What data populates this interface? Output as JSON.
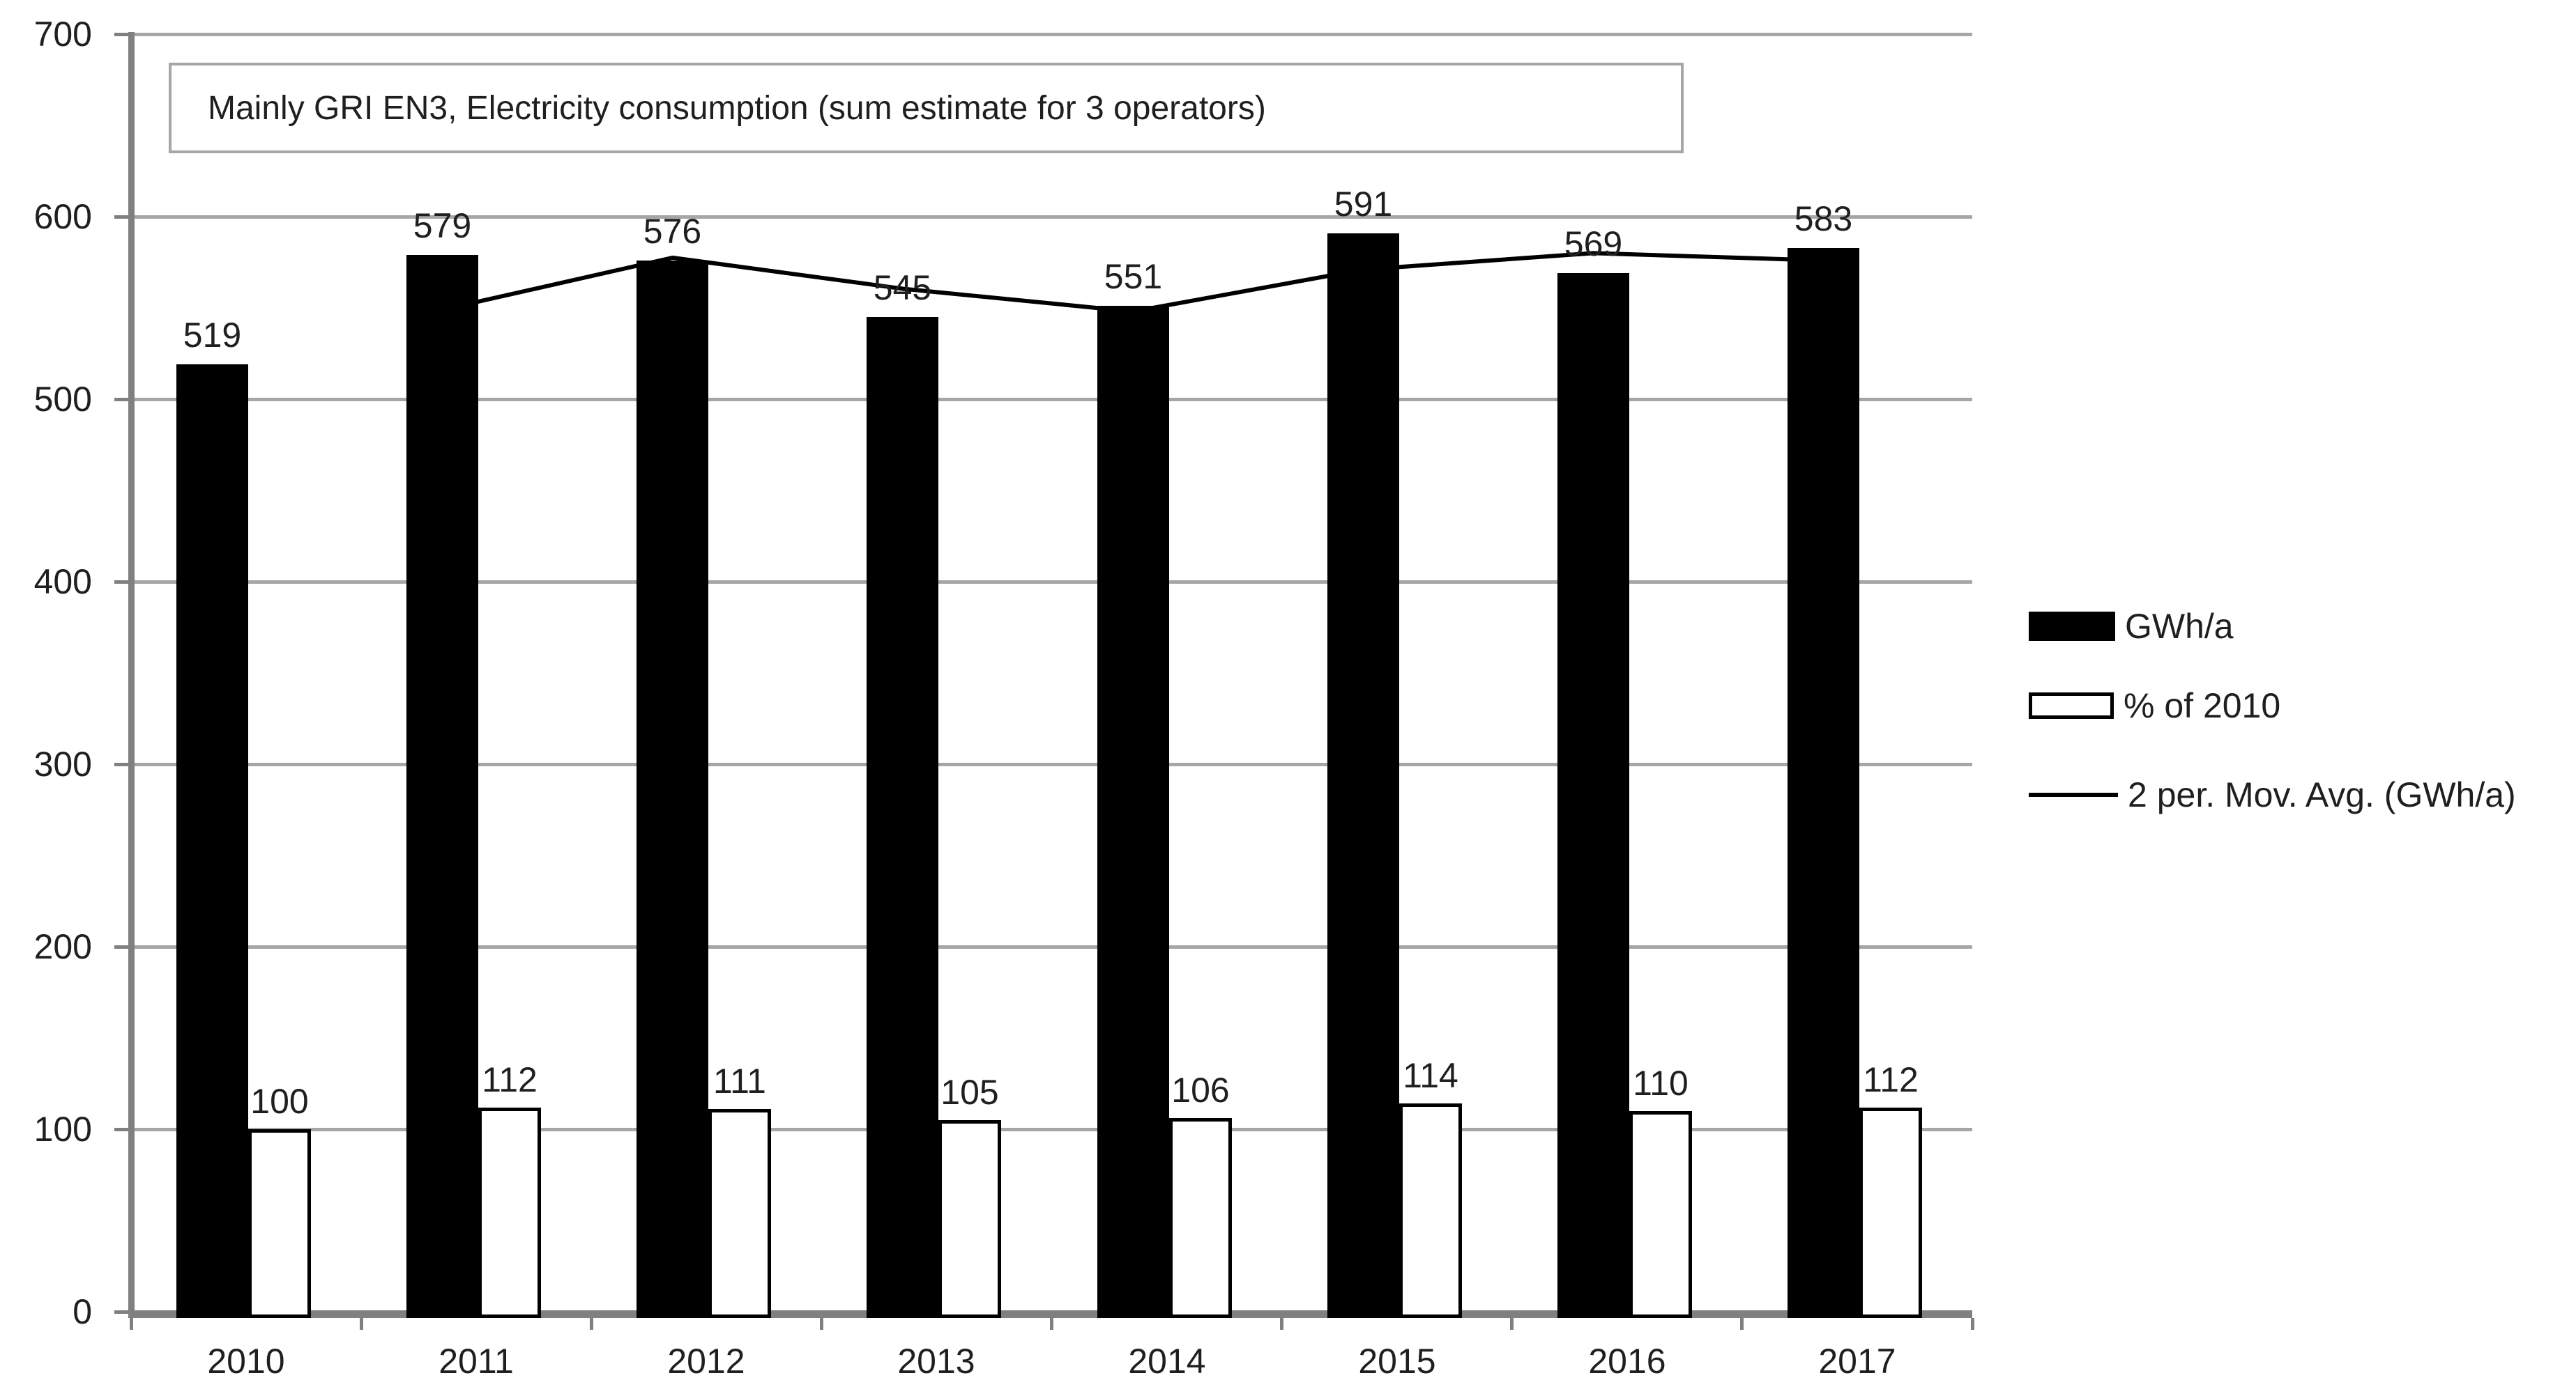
{
  "chart_data": {
    "type": "bar",
    "title": "Mainly GRI EN3, Electricity consumption (sum estimate for 3 operators)",
    "categories": [
      "2010",
      "2011",
      "2012",
      "2013",
      "2014",
      "2015",
      "2016",
      "2017"
    ],
    "series": [
      {
        "name": "GWh/a",
        "type": "bar",
        "color": "#000000",
        "values": [
          519,
          579,
          576,
          545,
          551,
          591,
          569,
          583
        ]
      },
      {
        "name": "% of 2010",
        "type": "bar",
        "color": "#ffffff",
        "border_color": "#000000",
        "values": [
          100,
          112,
          111,
          105,
          106,
          114,
          110,
          112
        ]
      },
      {
        "name": "2 per. Mov. Avg. (GWh/a)",
        "type": "line",
        "color": "#000000",
        "values": [
          null,
          549,
          577.5,
          560.5,
          548,
          571,
          580,
          576
        ]
      }
    ],
    "ylim": [
      0,
      700
    ],
    "yticks": [
      0,
      100,
      200,
      300,
      400,
      500,
      600,
      700
    ],
    "xlabel": "",
    "ylabel": "",
    "grid": true,
    "data_labels_shown": true,
    "legend_position": "right"
  },
  "colors": {
    "gridline": "#a6a6a6",
    "axis": "#808080",
    "bar_fill": "#000000",
    "bar_outline_fill": "#ffffff",
    "trendline": "#000000",
    "text": "#1f1f1f",
    "title_border": "#a6a6a6",
    "background": "#ffffff"
  }
}
